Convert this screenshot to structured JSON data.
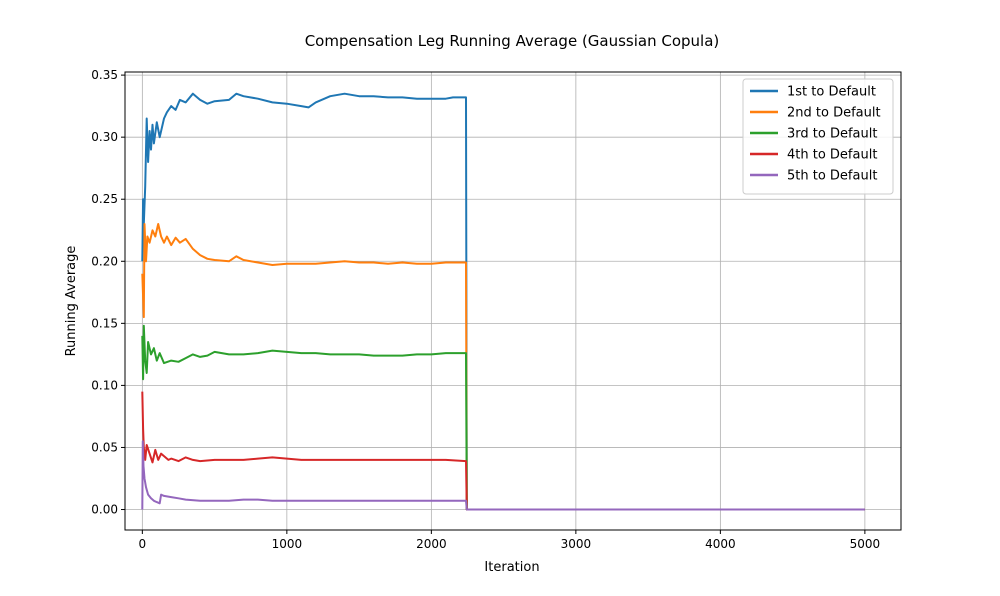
{
  "chart_data": {
    "type": "line",
    "title": "Compensation Leg Running Average (Gaussian Copula)",
    "xlabel": "Iteration",
    "ylabel": "Running Average",
    "xlim": [
      -120,
      5250
    ],
    "ylim": [
      -0.0165,
      0.3525
    ],
    "xticks": [
      0,
      1000,
      2000,
      3000,
      4000,
      5000
    ],
    "xtick_labels": [
      "0",
      "1000",
      "2000",
      "3000",
      "4000",
      "5000"
    ],
    "yticks": [
      0.0,
      0.05,
      0.1,
      0.15,
      0.2,
      0.25,
      0.3,
      0.35
    ],
    "ytick_labels": [
      "0.00",
      "0.05",
      "0.10",
      "0.15",
      "0.20",
      "0.25",
      "0.30",
      "0.35"
    ],
    "grid": true,
    "legend_position": "top-right",
    "series": [
      {
        "name": "1st to Default",
        "color": "#1f77b4",
        "points": [
          [
            0,
            0.2
          ],
          [
            5,
            0.25
          ],
          [
            10,
            0.23
          ],
          [
            20,
            0.26
          ],
          [
            30,
            0.315
          ],
          [
            40,
            0.28
          ],
          [
            50,
            0.305
          ],
          [
            60,
            0.29
          ],
          [
            70,
            0.31
          ],
          [
            80,
            0.295
          ],
          [
            100,
            0.312
          ],
          [
            120,
            0.3
          ],
          [
            150,
            0.315
          ],
          [
            170,
            0.32
          ],
          [
            200,
            0.325
          ],
          [
            230,
            0.322
          ],
          [
            260,
            0.33
          ],
          [
            300,
            0.328
          ],
          [
            350,
            0.335
          ],
          [
            400,
            0.33
          ],
          [
            450,
            0.327
          ],
          [
            500,
            0.329
          ],
          [
            600,
            0.33
          ],
          [
            650,
            0.335
          ],
          [
            700,
            0.333
          ],
          [
            800,
            0.331
          ],
          [
            900,
            0.328
          ],
          [
            1000,
            0.327
          ],
          [
            1100,
            0.325
          ],
          [
            1150,
            0.324
          ],
          [
            1200,
            0.328
          ],
          [
            1300,
            0.333
          ],
          [
            1400,
            0.335
          ],
          [
            1500,
            0.333
          ],
          [
            1600,
            0.333
          ],
          [
            1700,
            0.332
          ],
          [
            1800,
            0.332
          ],
          [
            1900,
            0.331
          ],
          [
            2000,
            0.331
          ],
          [
            2100,
            0.331
          ],
          [
            2150,
            0.332
          ],
          [
            2240,
            0.332
          ],
          [
            2245,
            0.0
          ],
          [
            5000,
            0.0
          ]
        ]
      },
      {
        "name": "2nd to Default",
        "color": "#ff7f0e",
        "points": [
          [
            0,
            0.19
          ],
          [
            10,
            0.155
          ],
          [
            15,
            0.23
          ],
          [
            25,
            0.2
          ],
          [
            35,
            0.22
          ],
          [
            50,
            0.215
          ],
          [
            70,
            0.225
          ],
          [
            90,
            0.22
          ],
          [
            110,
            0.23
          ],
          [
            130,
            0.22
          ],
          [
            150,
            0.215
          ],
          [
            170,
            0.22
          ],
          [
            200,
            0.213
          ],
          [
            230,
            0.219
          ],
          [
            260,
            0.215
          ],
          [
            300,
            0.218
          ],
          [
            350,
            0.21
          ],
          [
            400,
            0.205
          ],
          [
            450,
            0.202
          ],
          [
            500,
            0.201
          ],
          [
            600,
            0.2
          ],
          [
            650,
            0.204
          ],
          [
            700,
            0.201
          ],
          [
            800,
            0.199
          ],
          [
            900,
            0.197
          ],
          [
            1000,
            0.198
          ],
          [
            1100,
            0.198
          ],
          [
            1200,
            0.198
          ],
          [
            1300,
            0.199
          ],
          [
            1400,
            0.2
          ],
          [
            1500,
            0.199
          ],
          [
            1600,
            0.199
          ],
          [
            1700,
            0.198
          ],
          [
            1800,
            0.199
          ],
          [
            1900,
            0.198
          ],
          [
            2000,
            0.198
          ],
          [
            2100,
            0.199
          ],
          [
            2240,
            0.199
          ],
          [
            2245,
            0.0
          ],
          [
            5000,
            0.0
          ]
        ]
      },
      {
        "name": "3rd to Default",
        "color": "#2ca02c",
        "points": [
          [
            0,
            0.14
          ],
          [
            5,
            0.105
          ],
          [
            10,
            0.148
          ],
          [
            20,
            0.12
          ],
          [
            30,
            0.11
          ],
          [
            40,
            0.135
          ],
          [
            60,
            0.125
          ],
          [
            80,
            0.13
          ],
          [
            100,
            0.12
          ],
          [
            120,
            0.126
          ],
          [
            150,
            0.118
          ],
          [
            200,
            0.12
          ],
          [
            250,
            0.119
          ],
          [
            300,
            0.122
          ],
          [
            350,
            0.125
          ],
          [
            400,
            0.123
          ],
          [
            450,
            0.124
          ],
          [
            500,
            0.127
          ],
          [
            600,
            0.125
          ],
          [
            700,
            0.125
          ],
          [
            800,
            0.126
          ],
          [
            900,
            0.128
          ],
          [
            1000,
            0.127
          ],
          [
            1100,
            0.126
          ],
          [
            1200,
            0.126
          ],
          [
            1300,
            0.125
          ],
          [
            1400,
            0.125
          ],
          [
            1500,
            0.125
          ],
          [
            1600,
            0.124
          ],
          [
            1700,
            0.124
          ],
          [
            1800,
            0.124
          ],
          [
            1900,
            0.125
          ],
          [
            2000,
            0.125
          ],
          [
            2100,
            0.126
          ],
          [
            2240,
            0.126
          ],
          [
            2245,
            0.0
          ],
          [
            5000,
            0.0
          ]
        ]
      },
      {
        "name": "4th to Default",
        "color": "#d62728",
        "points": [
          [
            0,
            0.095
          ],
          [
            5,
            0.065
          ],
          [
            10,
            0.05
          ],
          [
            20,
            0.04
          ],
          [
            30,
            0.052
          ],
          [
            50,
            0.045
          ],
          [
            70,
            0.038
          ],
          [
            90,
            0.048
          ],
          [
            110,
            0.04
          ],
          [
            130,
            0.045
          ],
          [
            150,
            0.043
          ],
          [
            180,
            0.04
          ],
          [
            200,
            0.041
          ],
          [
            250,
            0.039
          ],
          [
            300,
            0.042
          ],
          [
            350,
            0.04
          ],
          [
            400,
            0.039
          ],
          [
            500,
            0.04
          ],
          [
            600,
            0.04
          ],
          [
            700,
            0.04
          ],
          [
            800,
            0.041
          ],
          [
            900,
            0.042
          ],
          [
            1000,
            0.041
          ],
          [
            1100,
            0.04
          ],
          [
            1200,
            0.04
          ],
          [
            1300,
            0.04
          ],
          [
            1400,
            0.04
          ],
          [
            1500,
            0.04
          ],
          [
            1600,
            0.04
          ],
          [
            1700,
            0.04
          ],
          [
            1800,
            0.04
          ],
          [
            1900,
            0.04
          ],
          [
            2000,
            0.04
          ],
          [
            2100,
            0.04
          ],
          [
            2240,
            0.039
          ],
          [
            2245,
            0.0
          ],
          [
            5000,
            0.0
          ]
        ]
      },
      {
        "name": "5th to Default",
        "color": "#9467bd",
        "points": [
          [
            0,
            0.0
          ],
          [
            3,
            0.055
          ],
          [
            8,
            0.035
          ],
          [
            15,
            0.025
          ],
          [
            25,
            0.018
          ],
          [
            40,
            0.012
          ],
          [
            60,
            0.009
          ],
          [
            80,
            0.007
          ],
          [
            100,
            0.006
          ],
          [
            120,
            0.005
          ],
          [
            130,
            0.012
          ],
          [
            150,
            0.011
          ],
          [
            200,
            0.01
          ],
          [
            250,
            0.009
          ],
          [
            300,
            0.008
          ],
          [
            400,
            0.007
          ],
          [
            500,
            0.007
          ],
          [
            600,
            0.007
          ],
          [
            700,
            0.008
          ],
          [
            800,
            0.008
          ],
          [
            900,
            0.007
          ],
          [
            1000,
            0.007
          ],
          [
            1100,
            0.007
          ],
          [
            1200,
            0.007
          ],
          [
            1300,
            0.007
          ],
          [
            1400,
            0.007
          ],
          [
            1500,
            0.007
          ],
          [
            1600,
            0.007
          ],
          [
            1700,
            0.007
          ],
          [
            1800,
            0.007
          ],
          [
            1900,
            0.007
          ],
          [
            2000,
            0.007
          ],
          [
            2100,
            0.007
          ],
          [
            2240,
            0.007
          ],
          [
            2245,
            0.0
          ],
          [
            5000,
            0.0
          ]
        ]
      }
    ]
  }
}
